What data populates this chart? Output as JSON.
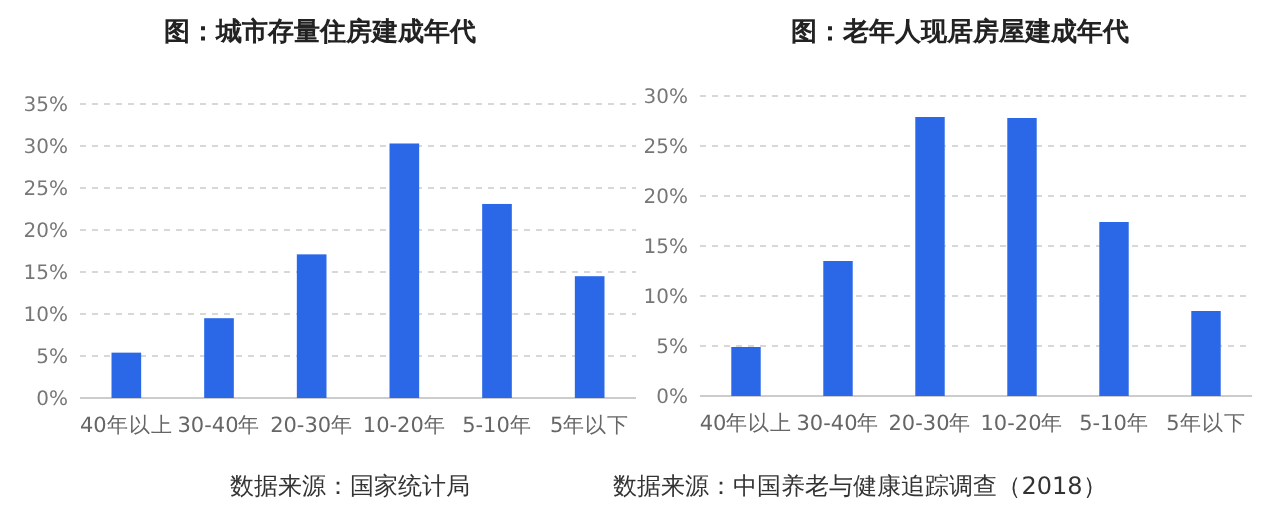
{
  "chart_data": [
    {
      "type": "bar",
      "title": "图：城市存量住房建成年代",
      "categories": [
        "40年以上",
        "30-40年",
        "20-30年",
        "10-20年",
        "5-10年",
        "5年以下"
      ],
      "values": [
        5.4,
        9.5,
        17.1,
        30.3,
        23.1,
        14.5
      ],
      "color": "#2a68e8",
      "ylim": [
        0,
        35
      ],
      "yticks": [
        {
          "value": 0,
          "label": "0%"
        },
        {
          "value": 5,
          "label": "5%"
        },
        {
          "value": 10,
          "label": "10%"
        },
        {
          "value": 15,
          "label": "15%"
        },
        {
          "value": 20,
          "label": "20%"
        },
        {
          "value": 25,
          "label": "25%"
        },
        {
          "value": 30,
          "label": "30%"
        },
        {
          "value": 35,
          "label": "35%"
        }
      ],
      "grid": "y",
      "annotations": [
        "数据来源：国家统计局"
      ]
    },
    {
      "type": "bar",
      "title": "图：老年人现居房屋建成年代",
      "categories": [
        "40年以上",
        "30-40年",
        "20-30年",
        "10-20年",
        "5-10年",
        "5年以下"
      ],
      "values": [
        4.9,
        13.5,
        27.9,
        27.8,
        17.4,
        8.5
      ],
      "color": "#2a68e8",
      "ylim": [
        0,
        30
      ],
      "yticks": [
        {
          "value": 0,
          "label": "0%"
        },
        {
          "value": 5,
          "label": "5%"
        },
        {
          "value": 10,
          "label": "10%"
        },
        {
          "value": 15,
          "label": "15%"
        },
        {
          "value": 20,
          "label": "20%"
        },
        {
          "value": 25,
          "label": "25%"
        },
        {
          "value": 30,
          "label": "30%"
        }
      ],
      "grid": "y",
      "annotations": [
        "数据来源：中国养老与健康追踪调查（2018）"
      ]
    }
  ]
}
